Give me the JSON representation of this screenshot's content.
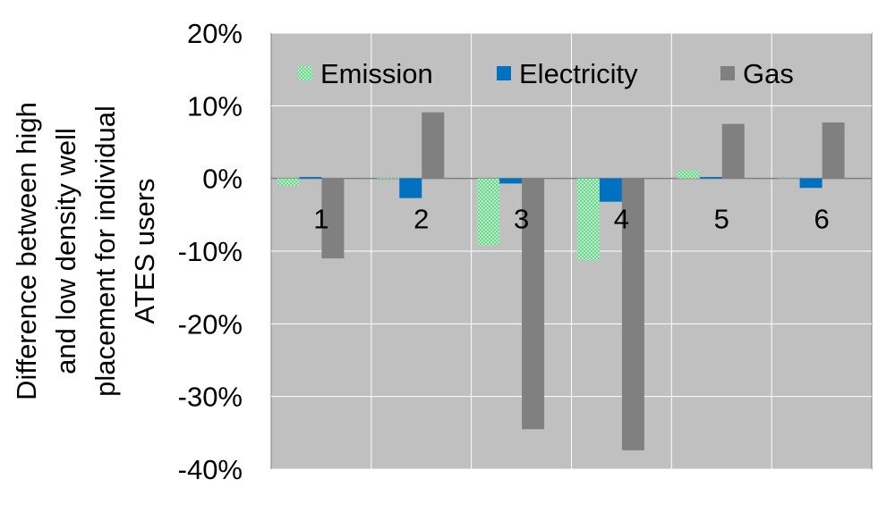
{
  "chart_data": {
    "type": "bar",
    "title": "",
    "xlabel": "",
    "ylabel": [
      "Difference between high",
      "and low density well",
      "placement for individual",
      "ATES users"
    ],
    "categories": [
      "1",
      "2",
      "3",
      "4",
      "5",
      "6"
    ],
    "series": [
      {
        "name": "Emission",
        "color": "#8fe3a8",
        "pattern": "dotted",
        "values": [
          -1.0,
          0.1,
          -9.2,
          -11.2,
          1.1,
          0.0
        ]
      },
      {
        "name": "Electricity",
        "color": "#0070c0",
        "values": [
          0.2,
          -2.7,
          -0.7,
          -3.2,
          0.2,
          -1.3
        ]
      },
      {
        "name": "Gas",
        "color": "#808080",
        "values": [
          -11.0,
          9.1,
          -34.5,
          -37.4,
          7.5,
          7.7
        ]
      }
    ],
    "ylim": [
      -40,
      20
    ],
    "yticks": [
      "20%",
      "10%",
      "0%",
      "-10%",
      "-20%",
      "-30%",
      "-40%"
    ],
    "ytick_values": [
      20,
      10,
      0,
      -10,
      -20,
      -30,
      -40
    ],
    "grid": true,
    "legend_position": "top",
    "plot_background": "#c0c0c0",
    "gridline_color": "#ffffff"
  }
}
